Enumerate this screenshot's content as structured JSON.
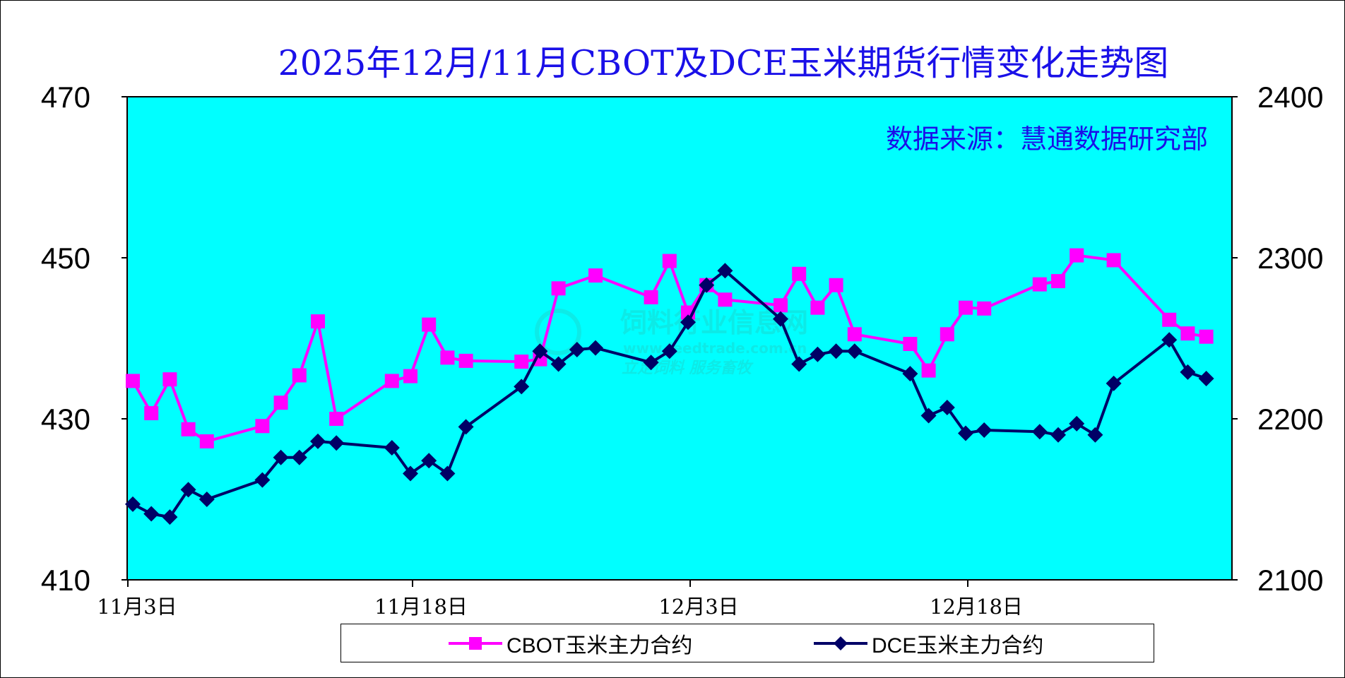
{
  "title": "2025年12月/11月CBOT及DCE玉米期货行情变化走势图",
  "source_note": "数据来源：慧通数据研究部",
  "watermark": {
    "name": "饲料行业信息网",
    "url": "www.feedtrade.com.cn",
    "slogan": "立足饲料  服务畜牧"
  },
  "colors": {
    "plot_bg": "#00ffff",
    "cbot": "#ff00ff",
    "dce": "#000066",
    "title": "#1a10e8"
  },
  "chart_data": {
    "type": "line",
    "title": "2025年12月/11月CBOT及DCE玉米期货行情变化走势图",
    "x_start": "11月3日",
    "x_ticks": [
      "11月3日",
      "11月18日",
      "12月3日",
      "12月18日"
    ],
    "x_tick_days": [
      0,
      15,
      30,
      45
    ],
    "y_left": {
      "ticks": [
        "470",
        "450",
        "430",
        "410"
      ],
      "ylim": [
        410,
        470
      ]
    },
    "y_right": {
      "ticks": [
        "2400",
        "2300",
        "2200",
        "2100"
      ],
      "ylim": [
        2100,
        2400
      ]
    },
    "grid": false,
    "legend_position": "bottom",
    "legend": [
      "CBOT玉米主力合约",
      "DCE玉米主力合约"
    ],
    "series": [
      {
        "name": "CBOT玉米主力合约",
        "axis": "left",
        "marker": "square",
        "points": [
          [
            "11月3日",
            434.7
          ],
          [
            "11月4日",
            430.7
          ],
          [
            "11月5日",
            434.9
          ],
          [
            "11月6日",
            428.7
          ],
          [
            "11月7日",
            427.2
          ],
          [
            "11月10日",
            429.1
          ],
          [
            "11月11日",
            432.0
          ],
          [
            "11月12日",
            435.4
          ],
          [
            "11月13日",
            442.1
          ],
          [
            "11月14日",
            430.0
          ],
          [
            "11月17日",
            434.7
          ],
          [
            "11月18日",
            435.3
          ],
          [
            "11月19日",
            441.7
          ],
          [
            "11月20日",
            437.6
          ],
          [
            "11月21日",
            437.2
          ],
          [
            "11月24日",
            437.1
          ],
          [
            "11月25日",
            437.4
          ],
          [
            "11月26日",
            446.2
          ],
          [
            "11月28日",
            447.8
          ],
          [
            "12月1日",
            445.1
          ],
          [
            "12月2日",
            449.6
          ],
          [
            "12月3日",
            443.2
          ],
          [
            "12月4日",
            446.6
          ],
          [
            "12月5日",
            444.8
          ],
          [
            "12月8日",
            444.1
          ],
          [
            "12月9日",
            448.0
          ],
          [
            "12月10日",
            443.8
          ],
          [
            "12月11日",
            446.6
          ],
          [
            "12月12日",
            440.5
          ],
          [
            "12月15日",
            439.3
          ],
          [
            "12月16日",
            436.0
          ],
          [
            "12月17日",
            440.5
          ],
          [
            "12月18日",
            443.8
          ],
          [
            "12月19日",
            443.7
          ],
          [
            "12月22日",
            446.7
          ],
          [
            "12月23日",
            447.1
          ],
          [
            "12月24日",
            450.3
          ],
          [
            "12月26日",
            449.7
          ],
          [
            "12月29日",
            442.3
          ],
          [
            "12月30日",
            440.6
          ],
          [
            "12月31日",
            440.2
          ]
        ]
      },
      {
        "name": "DCE玉米主力合约",
        "axis": "right",
        "marker": "diamond",
        "points": [
          [
            "11月3日",
            2147
          ],
          [
            "11月4日",
            2141
          ],
          [
            "11月5日",
            2139
          ],
          [
            "11月6日",
            2156
          ],
          [
            "11月7日",
            2150
          ],
          [
            "11月10日",
            2162
          ],
          [
            "11月11日",
            2176
          ],
          [
            "11月12日",
            2176
          ],
          [
            "11月13日",
            2186
          ],
          [
            "11月14日",
            2185
          ],
          [
            "11月17日",
            2182
          ],
          [
            "11月18日",
            2166
          ],
          [
            "11月19日",
            2174
          ],
          [
            "11月20日",
            2166
          ],
          [
            "11月21日",
            2195
          ],
          [
            "11月24日",
            2220
          ],
          [
            "11月25日",
            2242
          ],
          [
            "11月26日",
            2234
          ],
          [
            "11月27日",
            2243
          ],
          [
            "11月28日",
            2244
          ],
          [
            "12月1日",
            2235
          ],
          [
            "12月2日",
            2242
          ],
          [
            "12月3日",
            2260
          ],
          [
            "12月4日",
            2283
          ],
          [
            "12月5日",
            2292
          ],
          [
            "12月8日",
            2262
          ],
          [
            "12月9日",
            2234
          ],
          [
            "12月10日",
            2240
          ],
          [
            "12月11日",
            2242
          ],
          [
            "12月12日",
            2242
          ],
          [
            "12月15日",
            2228
          ],
          [
            "12月16日",
            2202
          ],
          [
            "12月17日",
            2207
          ],
          [
            "12月18日",
            2191
          ],
          [
            "12月19日",
            2193
          ],
          [
            "12月22日",
            2192
          ],
          [
            "12月23日",
            2190
          ],
          [
            "12月24日",
            2197
          ],
          [
            "12月25日",
            2190
          ],
          [
            "12月26日",
            2222
          ],
          [
            "12月29日",
            2249
          ],
          [
            "12月30日",
            2229
          ],
          [
            "12月31日",
            2225
          ]
        ]
      }
    ]
  }
}
